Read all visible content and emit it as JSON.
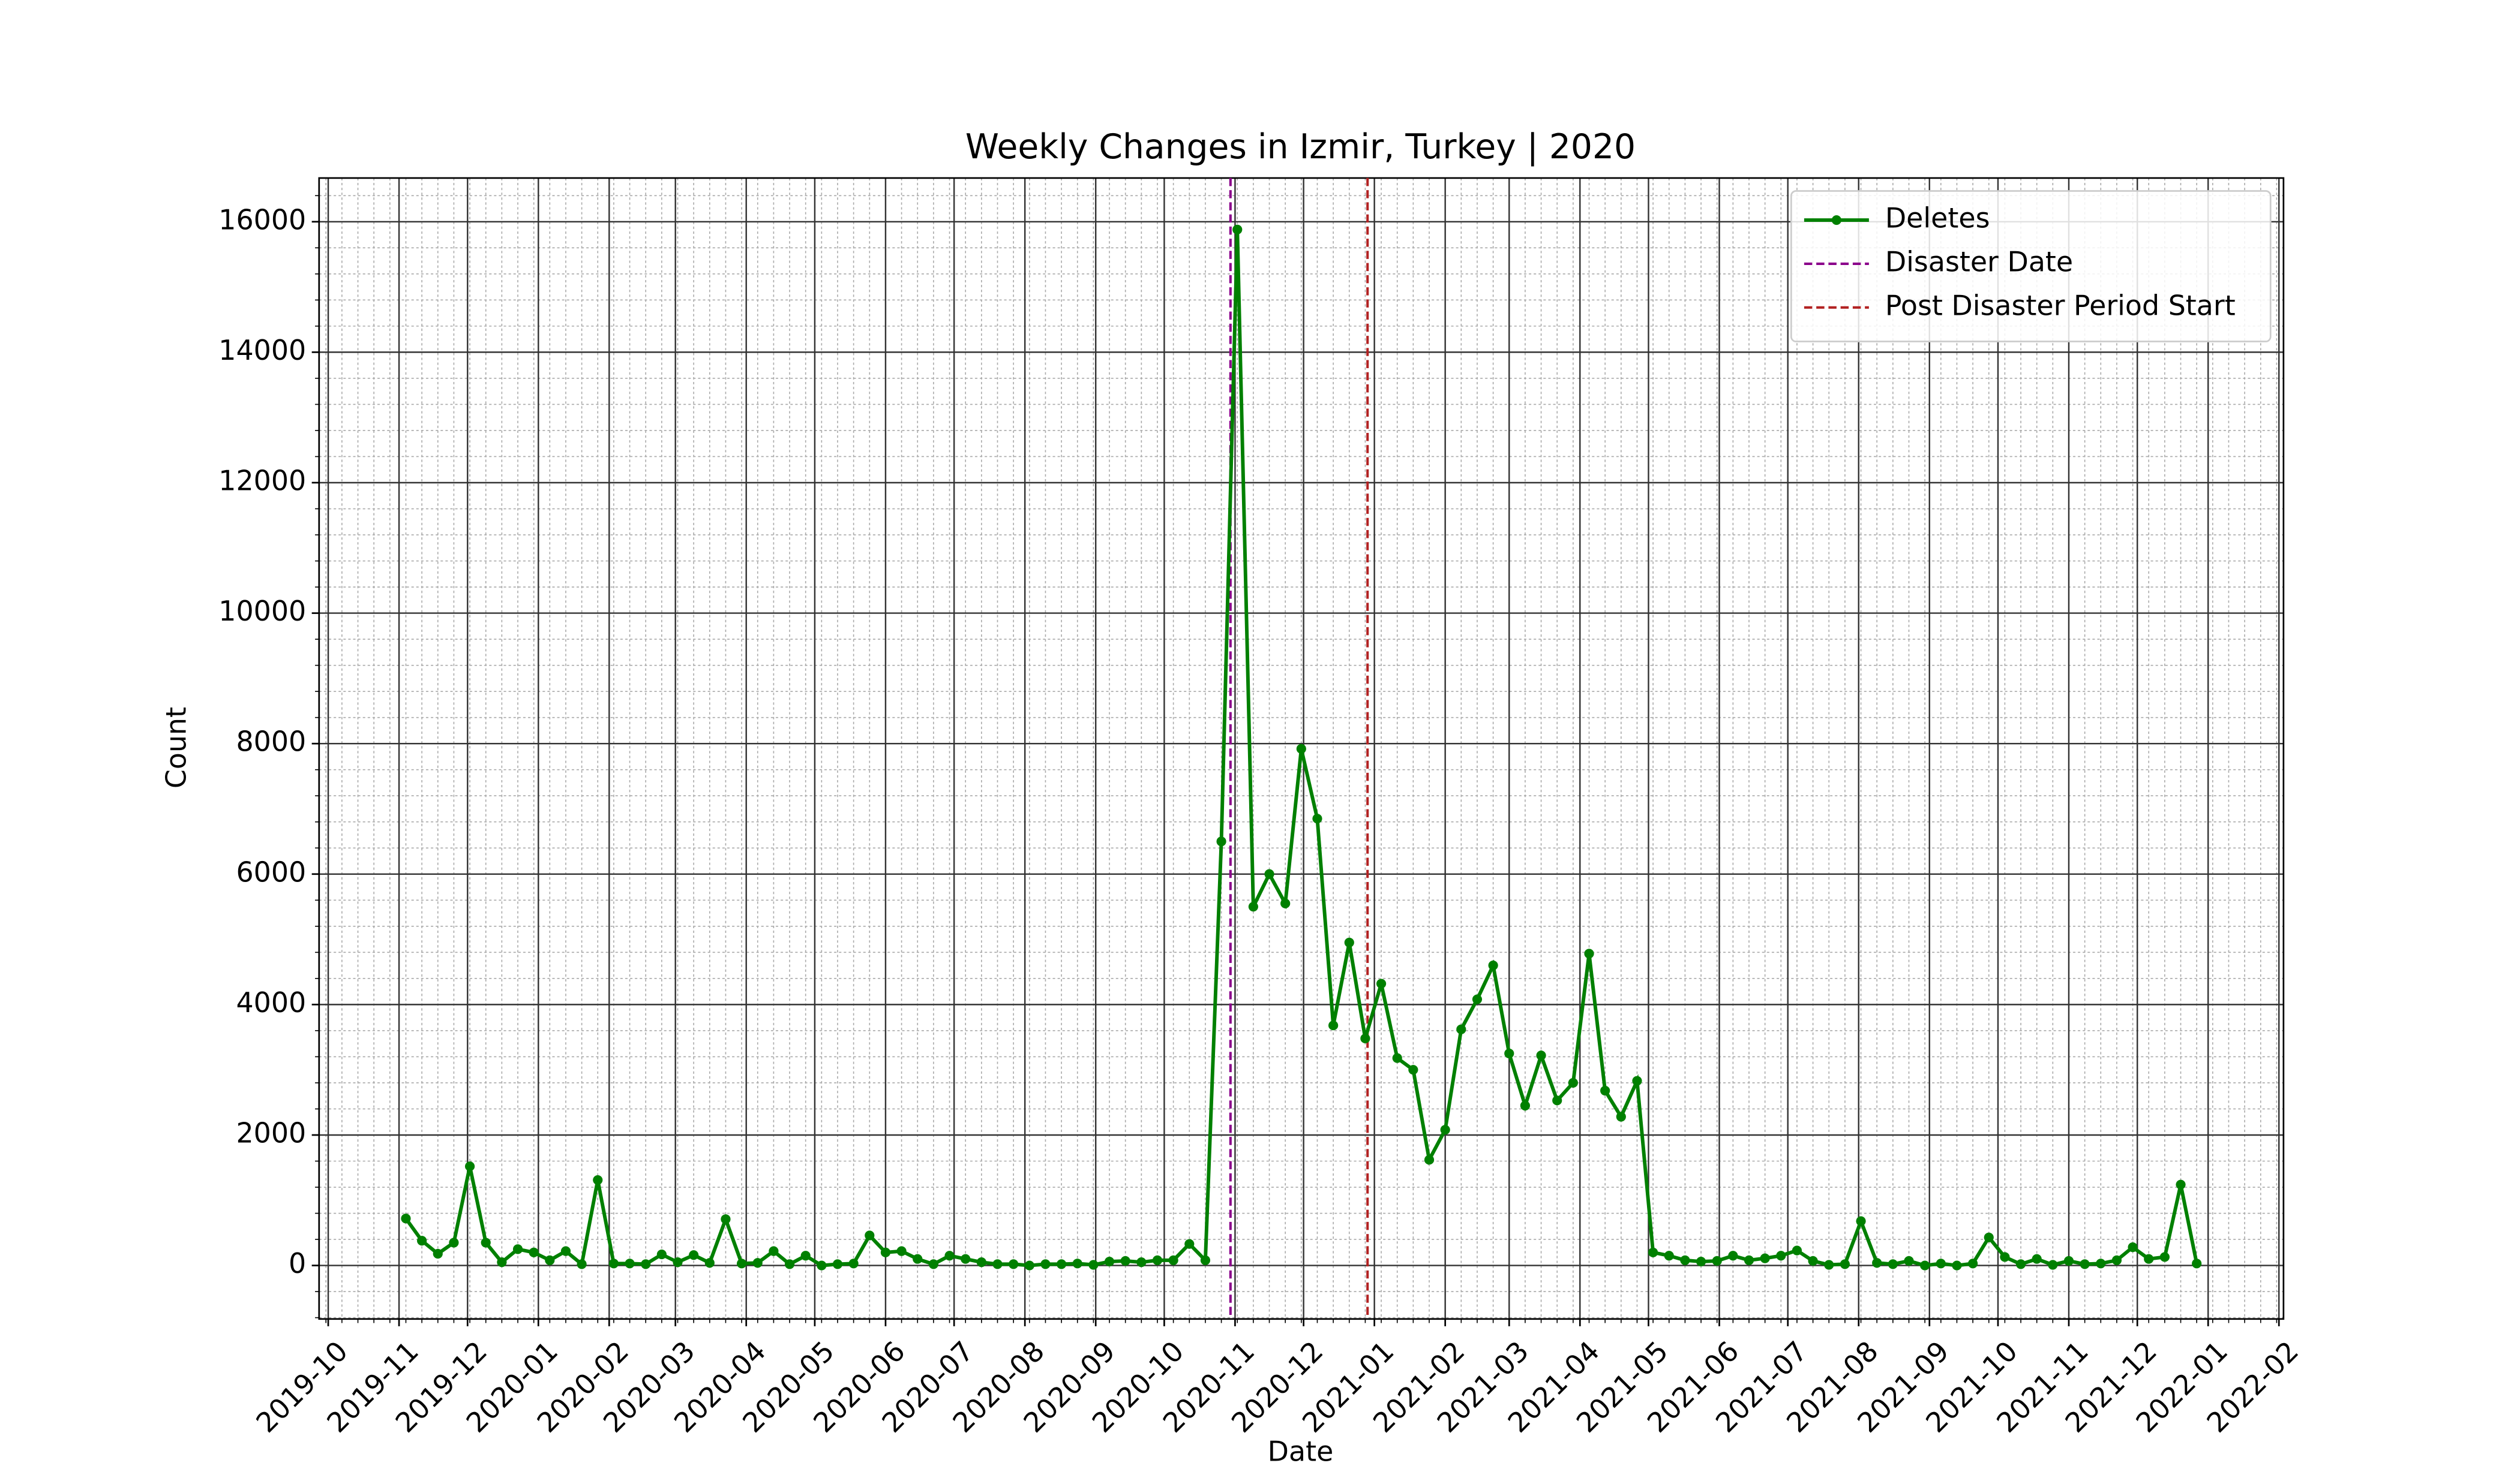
{
  "chart_data": {
    "type": "line",
    "title": "Weekly Changes in Izmir, Turkey | 2020",
    "x_label": "Date",
    "y_label": "Count",
    "x": [
      "2019-11-04",
      "2019-11-11",
      "2019-11-18",
      "2019-11-25",
      "2019-12-02",
      "2019-12-09",
      "2019-12-16",
      "2019-12-23",
      "2019-12-30",
      "2020-01-06",
      "2020-01-13",
      "2020-01-20",
      "2020-01-27",
      "2020-02-03",
      "2020-02-10",
      "2020-02-17",
      "2020-02-24",
      "2020-03-02",
      "2020-03-09",
      "2020-03-16",
      "2020-03-23",
      "2020-03-30",
      "2020-04-06",
      "2020-04-13",
      "2020-04-20",
      "2020-04-27",
      "2020-05-04",
      "2020-05-11",
      "2020-05-18",
      "2020-05-25",
      "2020-06-01",
      "2020-06-08",
      "2020-06-15",
      "2020-06-22",
      "2020-06-29",
      "2020-07-06",
      "2020-07-13",
      "2020-07-20",
      "2020-07-27",
      "2020-08-03",
      "2020-08-10",
      "2020-08-17",
      "2020-08-24",
      "2020-08-31",
      "2020-09-07",
      "2020-09-14",
      "2020-09-21",
      "2020-09-28",
      "2020-10-05",
      "2020-10-12",
      "2020-10-19",
      "2020-10-26",
      "2020-11-02",
      "2020-11-09",
      "2020-11-16",
      "2020-11-23",
      "2020-11-30",
      "2020-12-07",
      "2020-12-14",
      "2020-12-21",
      "2020-12-28",
      "2021-01-04",
      "2021-01-11",
      "2021-01-18",
      "2021-01-25",
      "2021-02-01",
      "2021-02-08",
      "2021-02-15",
      "2021-02-22",
      "2021-03-01",
      "2021-03-08",
      "2021-03-15",
      "2021-03-22",
      "2021-03-29",
      "2021-04-05",
      "2021-04-12",
      "2021-04-19",
      "2021-04-26",
      "2021-05-03",
      "2021-05-10",
      "2021-05-17",
      "2021-05-24",
      "2021-05-31",
      "2021-06-07",
      "2021-06-14",
      "2021-06-21",
      "2021-06-28",
      "2021-07-05",
      "2021-07-12",
      "2021-07-19",
      "2021-07-26",
      "2021-08-02",
      "2021-08-09",
      "2021-08-16",
      "2021-08-23",
      "2021-08-30",
      "2021-09-06",
      "2021-09-13",
      "2021-09-20",
      "2021-09-27",
      "2021-10-04",
      "2021-10-11",
      "2021-10-18",
      "2021-10-25",
      "2021-11-01",
      "2021-11-08",
      "2021-11-15",
      "2021-11-22",
      "2021-11-29",
      "2021-12-06",
      "2021-12-13",
      "2021-12-20",
      "2021-12-27"
    ],
    "series": [
      {
        "name": "Deletes",
        "color": "#008000",
        "values": [
          720,
          380,
          180,
          350,
          1520,
          350,
          50,
          250,
          200,
          80,
          220,
          20,
          1310,
          30,
          30,
          20,
          170,
          50,
          160,
          40,
          710,
          30,
          40,
          220,
          20,
          150,
          0,
          20,
          30,
          460,
          200,
          220,
          100,
          20,
          150,
          100,
          50,
          20,
          20,
          0,
          20,
          20,
          30,
          10,
          60,
          70,
          50,
          80,
          80,
          330,
          80,
          6500,
          15880,
          5500,
          6000,
          5550,
          7920,
          6850,
          3680,
          4950,
          3480,
          4320,
          3180,
          3000,
          1620,
          2080,
          3620,
          4080,
          4600,
          3250,
          2450,
          3220,
          2530,
          2800,
          4780,
          2680,
          2280,
          2830,
          200,
          150,
          80,
          60,
          70,
          150,
          80,
          110,
          150,
          230,
          70,
          10,
          20,
          680,
          40,
          20,
          70,
          0,
          30,
          0,
          30,
          430,
          130,
          20,
          100,
          10,
          70,
          20,
          30,
          80,
          280,
          100,
          130,
          1240,
          30
        ]
      }
    ],
    "vlines": [
      {
        "name": "Disaster Date",
        "x": "2020-10-30",
        "color": "#8b008b"
      },
      {
        "name": "Post Disaster Period Start",
        "x": "2020-12-29",
        "color": "#b22222"
      }
    ],
    "xlim": [
      "2019-09-27",
      "2022-02-03"
    ],
    "xticks": [
      "2019-10",
      "2019-11",
      "2019-12",
      "2020-01",
      "2020-02",
      "2020-03",
      "2020-04",
      "2020-05",
      "2020-06",
      "2020-07",
      "2020-08",
      "2020-09",
      "2020-10",
      "2020-11",
      "2020-12",
      "2021-01",
      "2021-02",
      "2021-03",
      "2021-04",
      "2021-05",
      "2021-06",
      "2021-07",
      "2021-08",
      "2021-09",
      "2021-10",
      "2021-11",
      "2021-12",
      "2022-01",
      "2022-02"
    ],
    "ylim": [
      -820,
      16670
    ],
    "yticks": [
      0,
      2000,
      4000,
      6000,
      8000,
      10000,
      12000,
      14000,
      16000
    ],
    "grid": true,
    "minor_grid": true,
    "legend": "upper right"
  }
}
